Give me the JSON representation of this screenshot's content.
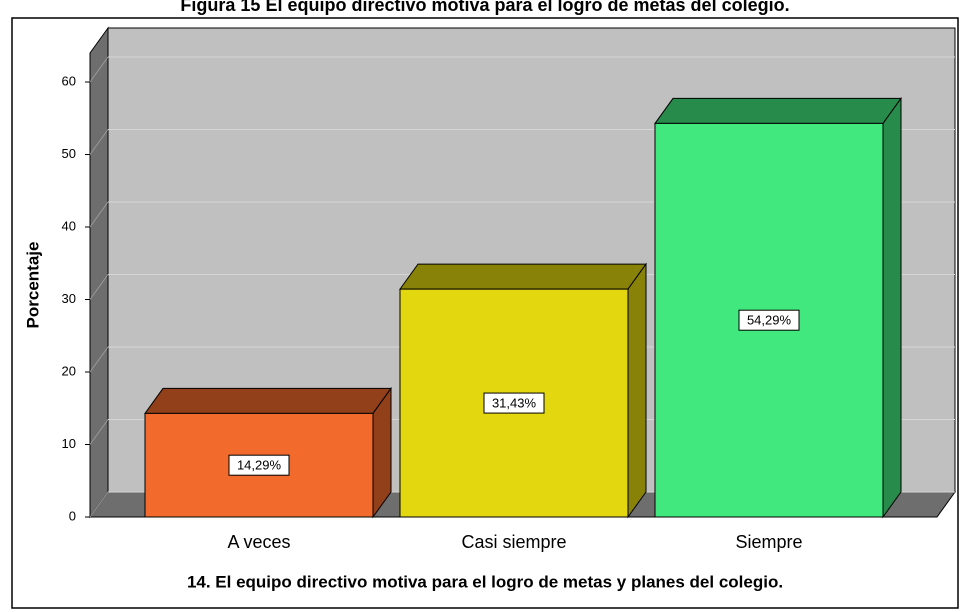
{
  "chart_data": {
    "type": "bar3d",
    "title": "Figura 15 El equipo directivo motiva para el logro de metas del colegio.",
    "xlabel": "14. El equipo directivo motiva para el logro de metas y planes del colegio.",
    "ylabel": "Porcentaje",
    "categories": [
      "A veces",
      "Casi siempre",
      "Siempre"
    ],
    "values": [
      14.29,
      31.43,
      54.29
    ],
    "value_labels": [
      "14,29%",
      "31,43%",
      "54,29%"
    ],
    "colors": [
      "#f26a2c",
      "#e3d80f",
      "#41e87e"
    ],
    "ylim": [
      0,
      64
    ],
    "yticks": [
      0,
      10,
      20,
      30,
      40,
      50,
      60
    ],
    "grid": true
  }
}
